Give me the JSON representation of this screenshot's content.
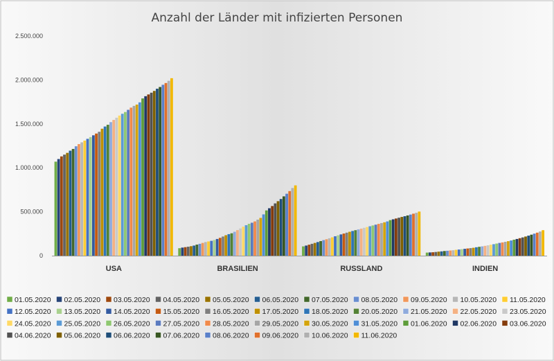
{
  "chart_data": {
    "type": "bar",
    "title": "Anzahl der Länder mit infizierten Personen",
    "categories": [
      "USA",
      "BRASILIEN",
      "RUSSLAND",
      "INDIEN"
    ],
    "ylim": [
      0,
      2500000
    ],
    "yticks": [
      "0",
      "500.000",
      "1.000.000",
      "1.500.000",
      "2.000.000",
      "2.500.000"
    ],
    "ytick_values": [
      0,
      500000,
      1000000,
      1500000,
      2000000,
      2500000
    ],
    "grid": false,
    "legend_position": "bottom",
    "series_names": [
      "01.05.2020",
      "02.05.2020",
      "03.05.2020",
      "04.05.2020",
      "05.05.2020",
      "06.05.2020",
      "07.05.2020",
      "08.05.2020",
      "09.05.2020",
      "10.05.2020",
      "11.05.2020",
      "12.05.2020",
      "13.05.2020",
      "14.05.2020",
      "15.05.2020",
      "16.05.2020",
      "17.05.2020",
      "18.05.2020",
      "20.05.2020",
      "21.05.2020",
      "22.05.2020",
      "23.05.2020",
      "24.05.2020",
      "25.05.2020",
      "26.05.2020",
      "27.05.2020",
      "28.05.2020",
      "29.05.2020",
      "30.05.2020",
      "31.05.2020",
      "01.06.2020",
      "02.06.2020",
      "03.06.2020",
      "04.06.2020",
      "05.06.2020",
      "06.06.2020",
      "07.06.2020",
      "08.06.2020",
      "09.06.2020",
      "10.06.2020",
      "11.06.2020"
    ],
    "series_colors": [
      "#70ad47",
      "#264478",
      "#9e480e",
      "#636363",
      "#997300",
      "#255e91",
      "#43682b",
      "#698ed0",
      "#f1975a",
      "#b7b7b7",
      "#ffcd33",
      "#4472c4",
      "#a9d18e",
      "#335aa1",
      "#c55a11",
      "#7f7f7f",
      "#bf9000",
      "#2e75b6",
      "#548235",
      "#8faadc",
      "#f4b183",
      "#c9c9c9",
      "#ffd966",
      "#5b9bd5",
      "#8fc871",
      "#5b7bbf",
      "#f08a4b",
      "#a6a6a6",
      "#d4a40c",
      "#4f8ed6",
      "#5e9c3a",
      "#203864",
      "#843c0c",
      "#525252",
      "#7f6000",
      "#1f4e79",
      "#385723",
      "#5a80c9",
      "#e0702c",
      "#b0b0b0",
      "#f2b800"
    ],
    "series": [
      {
        "name": "01.05.2020",
        "values": [
          1070000,
          85000,
          106000,
          35000
        ]
      },
      {
        "name": "02.05.2020",
        "values": [
          1100000,
          92000,
          115000,
          37000
        ]
      },
      {
        "name": "03.05.2020",
        "values": [
          1130000,
          97000,
          125000,
          39000
        ]
      },
      {
        "name": "04.05.2020",
        "values": [
          1150000,
          102000,
          135000,
          42000
        ]
      },
      {
        "name": "05.05.2020",
        "values": [
          1170000,
          108000,
          145000,
          46000
        ]
      },
      {
        "name": "06.05.2020",
        "values": [
          1195000,
          115000,
          155000,
          49000
        ]
      },
      {
        "name": "07.05.2020",
        "values": [
          1215000,
          126000,
          166000,
          53000
        ]
      },
      {
        "name": "08.05.2020",
        "values": [
          1245000,
          135000,
          177000,
          56000
        ]
      },
      {
        "name": "09.05.2020",
        "values": [
          1270000,
          145000,
          187000,
          59000
        ]
      },
      {
        "name": "10.05.2020",
        "values": [
          1290000,
          155000,
          198000,
          62000
        ]
      },
      {
        "name": "11.05.2020",
        "values": [
          1310000,
          162000,
          209000,
          67000
        ]
      },
      {
        "name": "12.05.2020",
        "values": [
          1330000,
          169000,
          221000,
          70000
        ]
      },
      {
        "name": "13.05.2020",
        "values": [
          1350000,
          178000,
          232000,
          74000
        ]
      },
      {
        "name": "14.05.2020",
        "values": [
          1370000,
          190000,
          242000,
          78000
        ]
      },
      {
        "name": "15.05.2020",
        "values": [
          1390000,
          203000,
          252000,
          82000
        ]
      },
      {
        "name": "16.05.2020",
        "values": [
          1410000,
          218000,
          262000,
          86000
        ]
      },
      {
        "name": "17.05.2020",
        "values": [
          1445000,
          233000,
          272000,
          90000
        ]
      },
      {
        "name": "18.05.2020",
        "values": [
          1470000,
          245000,
          281000,
          96000
        ]
      },
      {
        "name": "20.05.2020",
        "values": [
          1490000,
          255000,
          290000,
          101000
        ]
      },
      {
        "name": "21.05.2020",
        "values": [
          1520000,
          272000,
          299000,
          106000
        ]
      },
      {
        "name": "22.05.2020",
        "values": [
          1545000,
          291000,
          308000,
          112000
        ]
      },
      {
        "name": "23.05.2020",
        "values": [
          1570000,
          310000,
          317000,
          118000
        ]
      },
      {
        "name": "24.05.2020",
        "values": [
          1595000,
          330000,
          326000,
          125000
        ]
      },
      {
        "name": "25.05.2020",
        "values": [
          1615000,
          347000,
          335000,
          131000
        ]
      },
      {
        "name": "26.05.2020",
        "values": [
          1635000,
          363000,
          344000,
          138000
        ]
      },
      {
        "name": "27.05.2020",
        "values": [
          1660000,
          375000,
          353000,
          145000
        ]
      },
      {
        "name": "28.05.2020",
        "values": [
          1685000,
          390000,
          362000,
          151000
        ]
      },
      {
        "name": "29.05.2020",
        "values": [
          1705000,
          410000,
          371000,
          158000
        ]
      },
      {
        "name": "30.05.2020",
        "values": [
          1720000,
          430000,
          380000,
          165000
        ]
      },
      {
        "name": "31.05.2020",
        "values": [
          1745000,
          470000,
          390000,
          173000
        ]
      },
      {
        "name": "01.06.2020",
        "values": [
          1790000,
          515000,
          405000,
          182000
        ]
      },
      {
        "name": "02.06.2020",
        "values": [
          1815000,
          540000,
          414000,
          190000
        ]
      },
      {
        "name": "03.06.2020",
        "values": [
          1835000,
          565000,
          423000,
          199000
        ]
      },
      {
        "name": "04.06.2020",
        "values": [
          1855000,
          595000,
          432000,
          208000
        ]
      },
      {
        "name": "05.06.2020",
        "values": [
          1875000,
          620000,
          441000,
          218000
        ]
      },
      {
        "name": "06.06.2020",
        "values": [
          1900000,
          645000,
          449000,
          228000
        ]
      },
      {
        "name": "07.06.2020",
        "values": [
          1920000,
          675000,
          458000,
          239000
        ]
      },
      {
        "name": "08.06.2020",
        "values": [
          1945000,
          705000,
          468000,
          251000
        ]
      },
      {
        "name": "09.06.2020",
        "values": [
          1965000,
          735000,
          478000,
          262000
        ]
      },
      {
        "name": "10.06.2020",
        "values": [
          1990000,
          770000,
          488000,
          275000
        ]
      },
      {
        "name": "11.06.2020",
        "values": [
          2020000,
          800000,
          502000,
          290000
        ]
      }
    ]
  }
}
